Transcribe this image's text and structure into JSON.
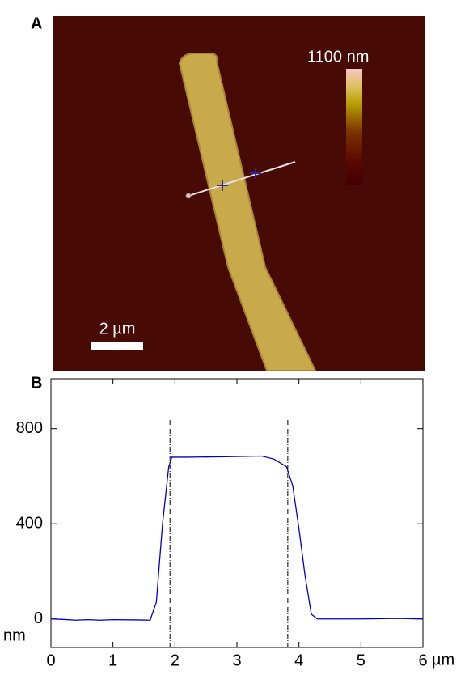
{
  "panel_a": {
    "label": "A",
    "colorbar_label": "1100 nm",
    "scalebar_label": "2 µm"
  },
  "chart_data": {
    "type": "line",
    "panel_label": "B",
    "x": [
      0,
      0.2,
      0.4,
      0.6,
      0.8,
      1.0,
      1.4,
      1.6,
      1.7,
      1.8,
      1.9,
      1.95,
      2.2,
      2.8,
      3.4,
      3.6,
      3.8,
      3.9,
      4.0,
      4.1,
      4.2,
      4.3,
      5.0,
      5.6,
      6.0
    ],
    "series": [
      {
        "color": "#0000cc",
        "values": [
          0,
          -2,
          -5,
          -3,
          -5,
          -3,
          -4,
          -5,
          70,
          400,
          640,
          680,
          680,
          682,
          685,
          672,
          640,
          560,
          380,
          180,
          20,
          0,
          0,
          2,
          0
        ]
      }
    ],
    "markers": [
      1.92,
      3.82
    ],
    "marker_top": 850,
    "xlim": [
      0,
      6
    ],
    "ylim": [
      -120,
      1010
    ],
    "xticks": [
      0,
      1,
      2,
      3,
      4,
      5,
      6
    ],
    "yticks": [
      0,
      400,
      800
    ],
    "x_unit": "µm",
    "y_unit": "nm"
  }
}
